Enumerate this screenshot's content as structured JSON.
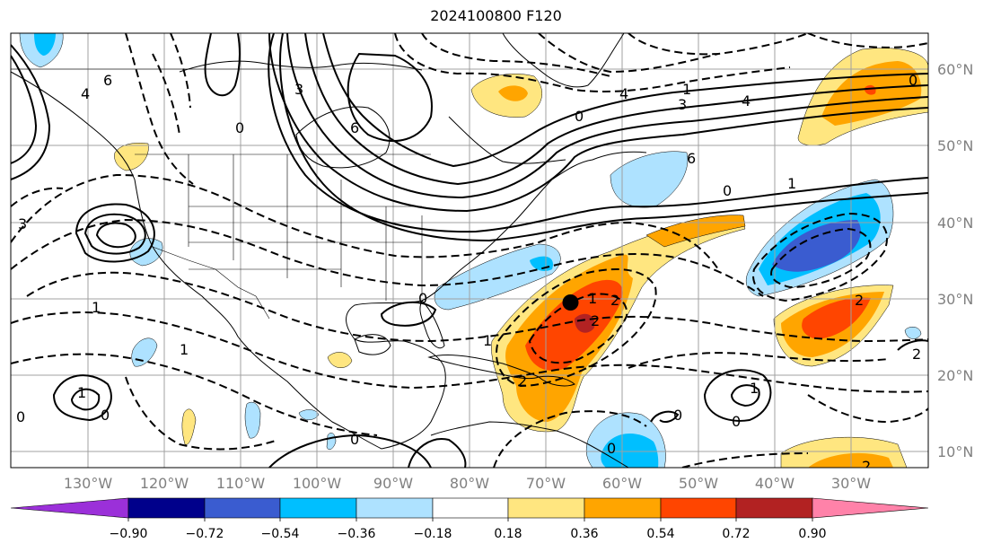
{
  "title": "2024100800 F120",
  "map": {
    "lon_labels": [
      "130°W",
      "120°W",
      "110°W",
      "100°W",
      "90°W",
      "80°W",
      "70°W",
      "60°W",
      "50°W",
      "40°W",
      "30°W"
    ],
    "lat_labels": [
      "60°N",
      "50°N",
      "40°N",
      "30°N",
      "20°N",
      "10°N"
    ],
    "marker": {
      "lon": -67,
      "lat": 29.5
    }
  },
  "colorbar": {
    "colors": [
      "#9b30d9",
      "#00008b",
      "#3a5cd0",
      "#00bfff",
      "#aee2ff",
      "#ffffff",
      "#ffe680",
      "#ffa500",
      "#ff4500",
      "#b22222",
      "#ff82a9"
    ],
    "tick_labels": [
      "−0.90",
      "−0.72",
      "−0.54",
      "−0.36",
      "−0.18",
      "0.18",
      "0.36",
      "0.54",
      "0.72",
      "0.90"
    ]
  },
  "contour_labels": [
    "6",
    "4",
    "3",
    "0",
    "6",
    "0",
    "4",
    "3",
    "0",
    "1",
    "4",
    "6",
    "0",
    "1",
    "3",
    "1",
    "1",
    "0",
    "1",
    "0",
    "0",
    "0",
    "1",
    "2",
    "1",
    "2",
    "2",
    "2",
    "0",
    "0",
    "1",
    "0",
    "2",
    "2"
  ]
}
